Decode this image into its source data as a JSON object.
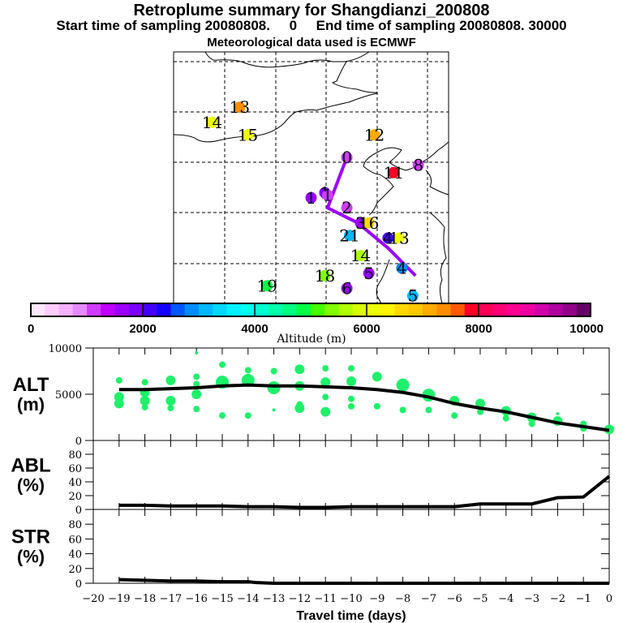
{
  "titles": {
    "line1": "Retroplume summary for Shangdianzi_200808",
    "line2": "Start time of sampling 20080808.     0     End time of sampling 20080808. 30000",
    "line3": "Meteorological data used is ECMWF"
  },
  "chart_data": [
    {
      "type": "scatter",
      "name": "retroplume-map",
      "description": "Map of retroplume cluster centroids labeled by days back, colored by altitude",
      "clusters": [
        {
          "label": "0",
          "lon_frac": 0.63,
          "lat_frac": 0.42,
          "altitude": 1200
        },
        {
          "label": "1",
          "lon_frac": 0.55,
          "lat_frac": 0.56,
          "altitude": 1800
        },
        {
          "label": "1",
          "lon_frac": 0.5,
          "lat_frac": 0.58,
          "altitude": 1600
        },
        {
          "label": "1",
          "lon_frac": 0.56,
          "lat_frac": 0.57,
          "altitude": 1100
        },
        {
          "label": "2",
          "lon_frac": 0.63,
          "lat_frac": 0.62,
          "altitude": 1200
        },
        {
          "label": "3",
          "lon_frac": 0.68,
          "lat_frac": 0.68,
          "altitude": 1700
        },
        {
          "label": "4",
          "lon_frac": 0.78,
          "lat_frac": 0.74,
          "altitude": 2200
        },
        {
          "label": "4",
          "lon_frac": 0.83,
          "lat_frac": 0.86,
          "altitude": 2800
        },
        {
          "label": "5",
          "lon_frac": 0.71,
          "lat_frac": 0.88,
          "altitude": 1500
        },
        {
          "label": "5",
          "lon_frac": 0.87,
          "lat_frac": 0.97,
          "altitude": 3200
        },
        {
          "label": "6",
          "lon_frac": 0.63,
          "lat_frac": 0.94,
          "altitude": 1600
        },
        {
          "label": "8",
          "lon_frac": 0.89,
          "lat_frac": 0.45,
          "altitude": 1000
        },
        {
          "label": "11",
          "lon_frac": 0.8,
          "lat_frac": 0.48,
          "altitude": 7800
        },
        {
          "label": "12",
          "lon_frac": 0.73,
          "lat_frac": 0.33,
          "altitude": 7200
        },
        {
          "label": "13",
          "lon_frac": 0.24,
          "lat_frac": 0.22,
          "altitude": 7300
        },
        {
          "label": "13",
          "lon_frac": 0.82,
          "lat_frac": 0.74,
          "altitude": 6000
        },
        {
          "label": "14",
          "lon_frac": 0.14,
          "lat_frac": 0.28,
          "altitude": 6200
        },
        {
          "label": "14",
          "lon_frac": 0.68,
          "lat_frac": 0.81,
          "altitude": 5600
        },
        {
          "label": "15",
          "lon_frac": 0.27,
          "lat_frac": 0.33,
          "altitude": 6000
        },
        {
          "label": "16",
          "lon_frac": 0.71,
          "lat_frac": 0.68,
          "altitude": 6600
        },
        {
          "label": "18",
          "lon_frac": 0.55,
          "lat_frac": 0.89,
          "altitude": 5300
        },
        {
          "label": "19",
          "lon_frac": 0.34,
          "lat_frac": 0.93,
          "altitude": 4800
        },
        {
          "label": "21",
          "lon_frac": 0.64,
          "lat_frac": 0.73,
          "altitude": 3000
        }
      ],
      "mean_path": [
        [
          0.63,
          0.42
        ],
        [
          0.56,
          0.62
        ],
        [
          0.67,
          0.68
        ],
        [
          0.78,
          0.78
        ],
        [
          0.88,
          0.89
        ]
      ]
    },
    {
      "type": "colorbar",
      "name": "altitude-colorbar",
      "xlabel": "Altitude (m)",
      "range": [
        0,
        10000
      ],
      "tick_labels": [
        "0",
        "2000",
        "4000",
        "6000",
        "8000",
        "10000"
      ],
      "colors": [
        "#ffe6ff",
        "#ffccff",
        "#f5b0ff",
        "#e68aff",
        "#d23cff",
        "#c000ff",
        "#9a00ff",
        "#7a00ff",
        "#4400ff",
        "#1400ff",
        "#0055ff",
        "#008cff",
        "#00b8ff",
        "#00d8ff",
        "#00f2ff",
        "#00ffee",
        "#00ffd0",
        "#00ffa8",
        "#00ff80",
        "#00ff44",
        "#44ff00",
        "#80ff00",
        "#b0ff00",
        "#d8ff00",
        "#ecff00",
        "#fff500",
        "#ffd800",
        "#ffc800",
        "#ffaa00",
        "#ff8c00",
        "#ff5a00",
        "#ff0028",
        "#ff0055",
        "#ff0077",
        "#ff0090",
        "#ee00a0",
        "#d000a8",
        "#b000a0",
        "#900088",
        "#660066"
      ]
    },
    {
      "type": "line",
      "name": "alt-panel",
      "ylabel": "ALT\n(m)",
      "xlim": [
        -20,
        0
      ],
      "ylim": [
        0,
        10000
      ],
      "ytick_labels": [
        "0",
        "5000",
        "10000"
      ],
      "x": [
        -19,
        -18,
        -17,
        -16,
        -15,
        -14,
        -13,
        -12,
        -11,
        -10,
        -9,
        -8,
        -7,
        -6,
        -5,
        -4,
        -3,
        -2,
        -1,
        0
      ],
      "mean_altitude": [
        5500,
        5500,
        5600,
        5700,
        5900,
        6000,
        5900,
        5900,
        5800,
        5700,
        5500,
        5200,
        4700,
        4000,
        3500,
        3100,
        2500,
        1900,
        1500,
        1100
      ],
      "cluster_points": [
        {
          "x": -19,
          "y": 6500,
          "size": 1
        },
        {
          "x": -19,
          "y": 4700,
          "size": 2
        },
        {
          "x": -19,
          "y": 4000,
          "size": 2
        },
        {
          "x": -18,
          "y": 6300,
          "size": 1
        },
        {
          "x": -18,
          "y": 5200,
          "size": 2
        },
        {
          "x": -18,
          "y": 4300,
          "size": 2
        },
        {
          "x": -18,
          "y": 3600,
          "size": 1
        },
        {
          "x": -17,
          "y": 6500,
          "size": 2
        },
        {
          "x": -17,
          "y": 4300,
          "size": 2
        },
        {
          "x": -17,
          "y": 3500,
          "size": 1
        },
        {
          "x": -16,
          "y": 9500,
          "size": 0
        },
        {
          "x": -16,
          "y": 6900,
          "size": 1
        },
        {
          "x": -16,
          "y": 6100,
          "size": 1
        },
        {
          "x": -16,
          "y": 5000,
          "size": 2
        },
        {
          "x": -16,
          "y": 3400,
          "size": 1
        },
        {
          "x": -15,
          "y": 8200,
          "size": 1
        },
        {
          "x": -15,
          "y": 6300,
          "size": 3
        },
        {
          "x": -15,
          "y": 2700,
          "size": 1
        },
        {
          "x": -14,
          "y": 7600,
          "size": 1
        },
        {
          "x": -14,
          "y": 6500,
          "size": 3
        },
        {
          "x": -14,
          "y": 2700,
          "size": 1
        },
        {
          "x": -13,
          "y": 7500,
          "size": 1
        },
        {
          "x": -13,
          "y": 5700,
          "size": 3
        },
        {
          "x": -13,
          "y": 3300,
          "size": 0
        },
        {
          "x": -12,
          "y": 7700,
          "size": 2
        },
        {
          "x": -12,
          "y": 5900,
          "size": 2
        },
        {
          "x": -12,
          "y": 3900,
          "size": 1
        },
        {
          "x": -12,
          "y": 3500,
          "size": 2
        },
        {
          "x": -11,
          "y": 7800,
          "size": 1
        },
        {
          "x": -11,
          "y": 6300,
          "size": 2
        },
        {
          "x": -11,
          "y": 4700,
          "size": 1
        },
        {
          "x": -11,
          "y": 3100,
          "size": 2
        },
        {
          "x": -10,
          "y": 7800,
          "size": 1
        },
        {
          "x": -10,
          "y": 6400,
          "size": 2
        },
        {
          "x": -10,
          "y": 4500,
          "size": 1
        },
        {
          "x": -10,
          "y": 3700,
          "size": 1
        },
        {
          "x": -9,
          "y": 6900,
          "size": 2
        },
        {
          "x": -9,
          "y": 3700,
          "size": 1
        },
        {
          "x": -8,
          "y": 6000,
          "size": 3
        },
        {
          "x": -8,
          "y": 3300,
          "size": 1
        },
        {
          "x": -7,
          "y": 4900,
          "size": 3
        },
        {
          "x": -7,
          "y": 3300,
          "size": 1
        },
        {
          "x": -6,
          "y": 4300,
          "size": 2
        },
        {
          "x": -6,
          "y": 2700,
          "size": 1
        },
        {
          "x": -5,
          "y": 4000,
          "size": 2
        },
        {
          "x": -5,
          "y": 3100,
          "size": 1
        },
        {
          "x": -4,
          "y": 3200,
          "size": 2
        },
        {
          "x": -4,
          "y": 2400,
          "size": 1
        },
        {
          "x": -3,
          "y": 2500,
          "size": 2
        },
        {
          "x": -3,
          "y": 1800,
          "size": 1
        },
        {
          "x": -2,
          "y": 2100,
          "size": 2
        },
        {
          "x": -2,
          "y": 2900,
          "size": 0
        },
        {
          "x": -1,
          "y": 1800,
          "size": 1
        },
        {
          "x": -1,
          "y": 1300,
          "size": 1
        },
        {
          "x": 0,
          "y": 1200,
          "size": 2
        }
      ]
    },
    {
      "type": "line",
      "name": "abl-panel",
      "ylabel": "ABL\n(%)",
      "xlim": [
        -20,
        0
      ],
      "ylim": [
        0,
        100
      ],
      "ytick_labels": [
        "0",
        "20",
        "40",
        "60",
        "80"
      ],
      "x": [
        -19,
        -18,
        -17,
        -16,
        -15,
        -14,
        -13,
        -12,
        -11,
        -10,
        -9,
        -8,
        -7,
        -6,
        -5,
        -4,
        -3,
        -2,
        -1,
        0
      ],
      "values": [
        6,
        6,
        5,
        5,
        5,
        4,
        4,
        3,
        3,
        4,
        4,
        4,
        4,
        4,
        8,
        8,
        8,
        17,
        18,
        48
      ]
    },
    {
      "type": "line",
      "name": "str-panel",
      "ylabel": "STR\n(%)",
      "xlim": [
        -20,
        0
      ],
      "ylim": [
        0,
        100
      ],
      "ytick_labels": [
        "0",
        "20",
        "40",
        "60",
        "80"
      ],
      "x": [
        -19,
        -18,
        -17,
        -16,
        -15,
        -14,
        -13.7,
        -13,
        -12,
        -11,
        -10,
        -9,
        -8,
        -7,
        -6,
        -5,
        -4,
        -3,
        -2,
        -1,
        0
      ],
      "values": [
        5,
        4,
        3,
        3,
        2,
        2,
        1,
        0,
        0,
        0,
        0,
        0,
        0,
        0,
        0,
        0,
        0,
        0,
        0,
        0,
        0
      ],
      "xlabel": "Travel time (days)",
      "xtick_labels": [
        "−20",
        "−19",
        "−18",
        "−17",
        "−16",
        "−15",
        "−14",
        "−13",
        "−12",
        "−11",
        "−10",
        "−9",
        "−8",
        "−7",
        "−6",
        "−5",
        "−4",
        "−3",
        "−2",
        "−1",
        "0"
      ]
    }
  ]
}
